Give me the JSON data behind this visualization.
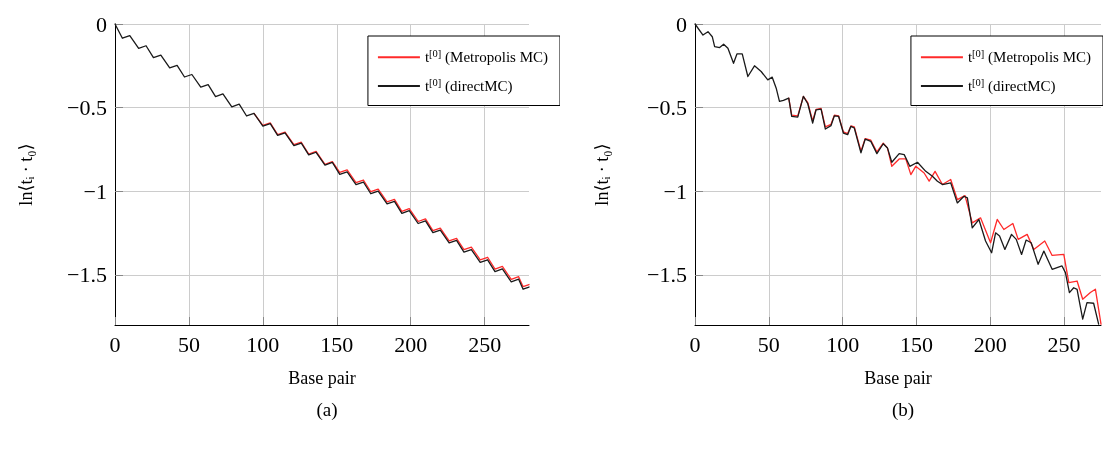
{
  "chart_data": [
    {
      "type": "line",
      "title": "(a)",
      "xlabel": "Base pair",
      "ylabel": "ln⟨tᵢ · t₀⟩",
      "xlim": [
        0,
        280
      ],
      "xticks": [
        0,
        50,
        100,
        150,
        200,
        250
      ],
      "ylim": [
        -1.8,
        0
      ],
      "yticks": [
        0,
        {
          "value": -0.5,
          "label": "−0.5"
        },
        {
          "value": -1,
          "label": "−1"
        },
        {
          "value": -1.5,
          "label": "−1.5"
        }
      ],
      "grid": true,
      "legend": "top right",
      "series": [
        {
          "name": "t$^{[0]}$ (Metropolis MC)",
          "color": "#ff2a2a",
          "x": [
            94,
            100,
            105,
            110,
            115,
            121,
            126,
            131,
            136,
            142,
            147,
            152,
            157,
            163,
            168,
            173,
            178,
            184,
            189,
            194,
            199,
            205,
            210,
            215,
            220,
            226,
            231,
            236,
            241,
            247,
            252,
            257,
            262,
            268,
            273,
            276,
            280
          ],
          "values": [
            -0.535,
            -0.606,
            -0.591,
            -0.661,
            -0.646,
            -0.722,
            -0.707,
            -0.778,
            -0.762,
            -0.839,
            -0.823,
            -0.887,
            -0.872,
            -0.948,
            -0.933,
            -1.003,
            -0.988,
            -1.064,
            -1.049,
            -1.12,
            -1.104,
            -1.181,
            -1.165,
            -1.236,
            -1.221,
            -1.297,
            -1.282,
            -1.349,
            -1.334,
            -1.41,
            -1.395,
            -1.466,
            -1.45,
            -1.527,
            -1.511,
            -1.571,
            -1.558
          ]
        },
        {
          "name": "t$^{[0]}$ (directMC)",
          "color": "#1a1a1a",
          "x": [
            0,
            5,
            10,
            16,
            21,
            26,
            31,
            37,
            42,
            47,
            52,
            58,
            63,
            68,
            73,
            79,
            84,
            89,
            94,
            100,
            105,
            110,
            115,
            121,
            126,
            131,
            136,
            142,
            147,
            152,
            157,
            163,
            168,
            173,
            178,
            184,
            189,
            194,
            199,
            205,
            210,
            215,
            220,
            226,
            231,
            236,
            241,
            247,
            252,
            257,
            262,
            268,
            273,
            276,
            280
          ],
          "values": [
            0,
            -0.085,
            -0.069,
            -0.146,
            -0.13,
            -0.201,
            -0.186,
            -0.262,
            -0.247,
            -0.317,
            -0.302,
            -0.378,
            -0.363,
            -0.434,
            -0.418,
            -0.495,
            -0.479,
            -0.55,
            -0.535,
            -0.611,
            -0.596,
            -0.666,
            -0.651,
            -0.727,
            -0.712,
            -0.783,
            -0.767,
            -0.844,
            -0.828,
            -0.899,
            -0.884,
            -0.96,
            -0.945,
            -1.015,
            -1.0,
            -1.076,
            -1.061,
            -1.132,
            -1.116,
            -1.193,
            -1.177,
            -1.248,
            -1.233,
            -1.309,
            -1.294,
            -1.364,
            -1.349,
            -1.425,
            -1.41,
            -1.481,
            -1.465,
            -1.542,
            -1.526,
            -1.586,
            -1.573
          ]
        }
      ]
    },
    {
      "type": "line",
      "title": "(b)",
      "xlabel": "Base pair",
      "ylabel": "ln⟨tᵢ · t₀⟩",
      "xlim": [
        0,
        275
      ],
      "xticks": [
        0,
        50,
        100,
        150,
        200,
        250
      ],
      "ylim": [
        -1.8,
        0
      ],
      "yticks": [
        0,
        {
          "value": -0.5,
          "label": "−0.5"
        },
        {
          "value": -1,
          "label": "−1"
        },
        {
          "value": -1.5,
          "label": "−1.5"
        }
      ],
      "grid": true,
      "legend": "top right",
      "series": [
        {
          "name": "t$^{[0]}$ (Metropolis MC)",
          "color": "#ff2a2a",
          "x": [
            63.5,
            65.5,
            69.6,
            73.4,
            76.4,
            79.7,
            82,
            85.4,
            88.3,
            92.1,
            94.4,
            97.3,
            100.5,
            103.4,
            105.6,
            107.9,
            112.4,
            115.3,
            119.1,
            123.2,
            127.5,
            130.4,
            133.3,
            138.3,
            142.8,
            146.2,
            149.5,
            155.2,
            158.6,
            162.6,
            167.6,
            173.2,
            177.7,
            182.9,
            187.8,
            193.4,
            200.2,
            204.7,
            209.2,
            215.3,
            218.9,
            225,
            229.5,
            236.9,
            241.9,
            249.8,
            253.2,
            258.8,
            262.6,
            267.8,
            271.2,
            275
          ],
          "values": [
            -0.443,
            -0.545,
            -0.55,
            -0.433,
            -0.47,
            -0.58,
            -0.51,
            -0.505,
            -0.615,
            -0.6,
            -0.545,
            -0.55,
            -0.645,
            -0.655,
            -0.61,
            -0.615,
            -0.76,
            -0.685,
            -0.695,
            -0.765,
            -0.712,
            -0.742,
            -0.851,
            -0.807,
            -0.807,
            -0.901,
            -0.851,
            -0.891,
            -0.94,
            -0.881,
            -0.96,
            -0.93,
            -1.05,
            -1.026,
            -1.189,
            -1.159,
            -1.308,
            -1.169,
            -1.229,
            -1.193,
            -1.288,
            -1.258,
            -1.348,
            -1.298,
            -1.384,
            -1.378,
            -1.547,
            -1.537,
            -1.646,
            -1.606,
            -1.586,
            -1.795
          ]
        },
        {
          "name": "t$^{[0]}$ (directMC)",
          "color": "#1a1a1a",
          "x": [
            0,
            5.4,
            8.8,
            11.7,
            13.3,
            16.7,
            19.4,
            22.3,
            26.1,
            28.4,
            32,
            35.8,
            40.3,
            44.8,
            49.3,
            52.3,
            55,
            57.2,
            59.9,
            63.5,
            65.5,
            69.6,
            73.4,
            76.4,
            79.7,
            82,
            85.4,
            88.3,
            92.1,
            94.4,
            97.3,
            100.5,
            103.4,
            105.6,
            107.9,
            112.4,
            115.3,
            119.1,
            123.2,
            127.5,
            130.4,
            133.3,
            138.3,
            141.7,
            145.5,
            150.7,
            156.3,
            160.8,
            164.2,
            167.6,
            173.2,
            177.7,
            182.2,
            184.5,
            187.8,
            192.3,
            196.8,
            200.9,
            203.6,
            206.3,
            209.9,
            214.4,
            217.6,
            221.2,
            224.3,
            227.7,
            232.4,
            236.3,
            241.9,
            248.6,
            250.9,
            253.6,
            256.5,
            258.8,
            262.6,
            265.5,
            270,
            273.4
          ],
          "values": [
            0,
            -0.066,
            -0.046,
            -0.076,
            -0.135,
            -0.141,
            -0.121,
            -0.145,
            -0.235,
            -0.179,
            -0.179,
            -0.314,
            -0.25,
            -0.284,
            -0.334,
            -0.318,
            -0.384,
            -0.463,
            -0.457,
            -0.443,
            -0.553,
            -0.557,
            -0.433,
            -0.477,
            -0.592,
            -0.513,
            -0.509,
            -0.628,
            -0.608,
            -0.549,
            -0.553,
            -0.652,
            -0.662,
            -0.612,
            -0.622,
            -0.771,
            -0.688,
            -0.702,
            -0.775,
            -0.716,
            -0.742,
            -0.827,
            -0.775,
            -0.781,
            -0.851,
            -0.827,
            -0.881,
            -0.911,
            -0.94,
            -0.96,
            -0.95,
            -1.07,
            -1.03,
            -1.04,
            -1.219,
            -1.169,
            -1.298,
            -1.368,
            -1.249,
            -1.268,
            -1.348,
            -1.258,
            -1.288,
            -1.378,
            -1.292,
            -1.308,
            -1.437,
            -1.358,
            -1.467,
            -1.447,
            -1.487,
            -1.606,
            -1.577,
            -1.587,
            -1.765,
            -1.666,
            -1.67,
            -1.795
          ]
        }
      ]
    }
  ]
}
